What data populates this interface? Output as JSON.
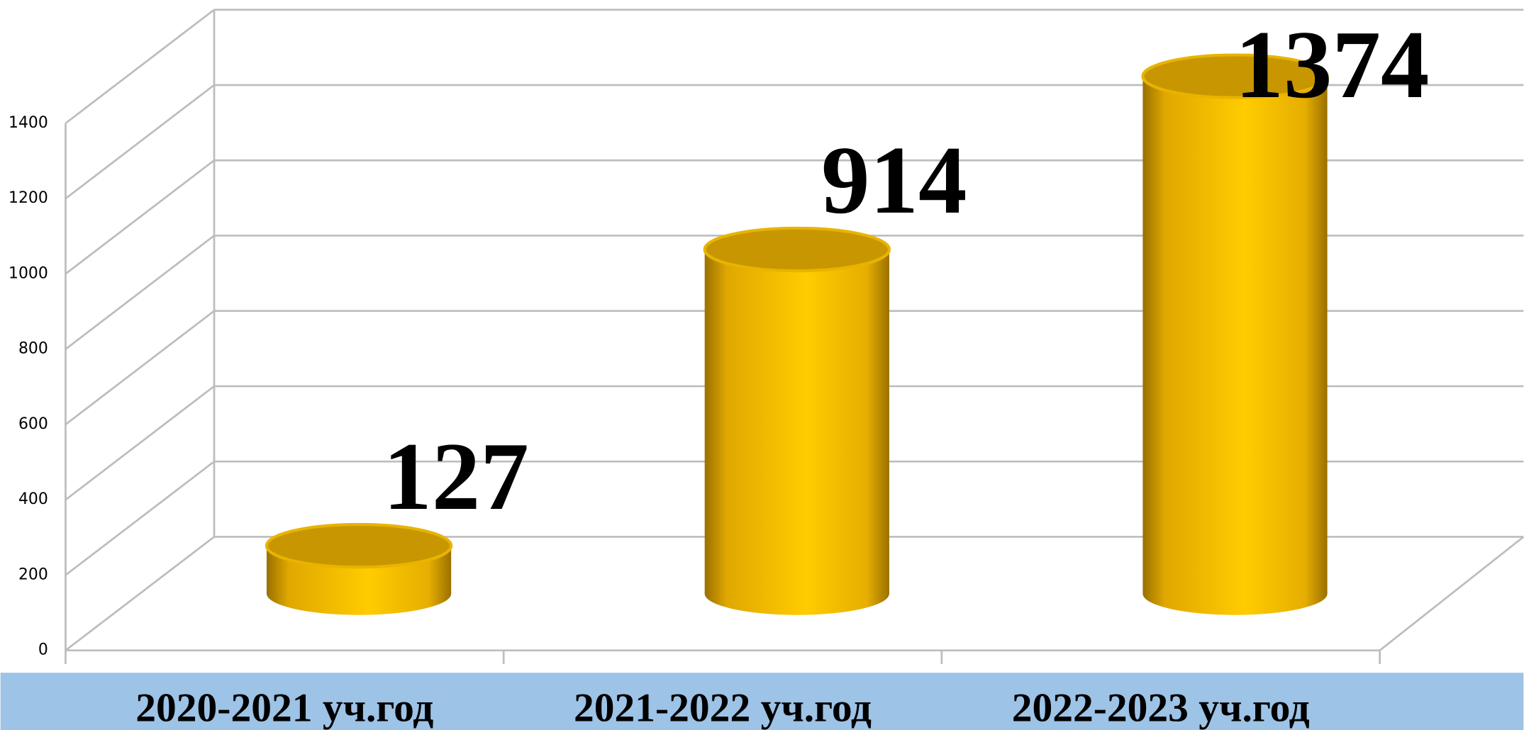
{
  "chart_data": {
    "type": "bar3d",
    "categories": [
      "2020-2021 уч.год",
      "2021-2022 уч.год",
      "2022-2023 уч.год"
    ],
    "values": [
      127,
      914,
      1374
    ],
    "color": "#ffc000",
    "ylim": [
      0,
      1400
    ],
    "yticks": [
      0,
      200,
      400,
      600,
      800,
      1000,
      1200,
      1400
    ],
    "grid": true
  }
}
